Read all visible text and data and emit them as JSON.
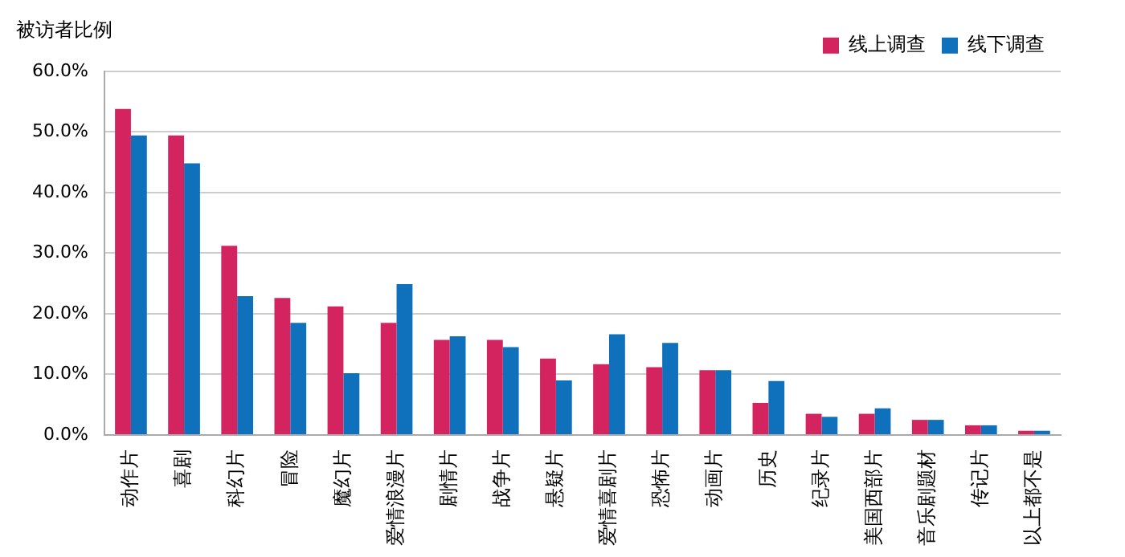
{
  "chart_data": {
    "type": "bar",
    "ylabel": "被访者比例",
    "categories": [
      "动作片",
      "喜剧",
      "科幻片",
      "冒险",
      "魔幻片",
      "爱情浪漫片",
      "剧情片",
      "战争片",
      "悬疑片",
      "爱情喜剧片",
      "恐怖片",
      "动画片",
      "历史",
      "纪录片",
      "美国西部片",
      "音乐剧题材",
      "传记片",
      "以上都不是"
    ],
    "series": [
      {
        "name": "线上调查",
        "color": "#d42460",
        "values": [
          53.8,
          49.4,
          31.2,
          22.6,
          21.2,
          18.5,
          15.7,
          15.7,
          12.6,
          11.7,
          11.2,
          10.7,
          5.3,
          3.5,
          3.5,
          2.5,
          1.6,
          0.7
        ]
      },
      {
        "name": "线下调查",
        "color": "#0f71bb",
        "values": [
          49.4,
          44.8,
          22.9,
          18.5,
          10.2,
          24.9,
          16.3,
          14.5,
          9.0,
          16.6,
          15.2,
          10.7,
          8.9,
          3.0,
          4.4,
          2.5,
          1.6,
          0.7
        ]
      }
    ],
    "ylim": [
      0,
      60
    ],
    "yticks": [
      {
        "value": 0,
        "label": "0.0%"
      },
      {
        "value": 10,
        "label": "10.0%"
      },
      {
        "value": 20,
        "label": "20.0%"
      },
      {
        "value": 30,
        "label": "30.0%"
      },
      {
        "value": 40,
        "label": "40.0%"
      },
      {
        "value": 50,
        "label": "50.0%"
      },
      {
        "value": 60,
        "label": "60.0%"
      }
    ],
    "grid": "y",
    "legend": "top right"
  }
}
